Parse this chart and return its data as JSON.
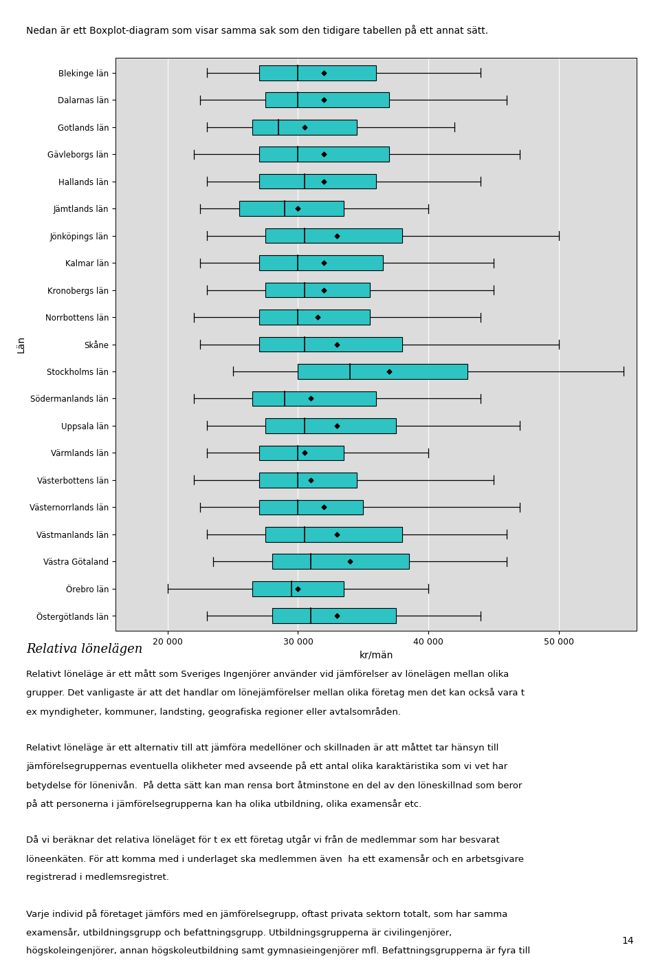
{
  "title_top": "Nedan är ett Boxplot-diagram som visar samma sak som den tidigare tabellen på ett annat sätt.",
  "ylabel": "Län",
  "xlabel": "kr/män",
  "plot_bg": "#dcdcdc",
  "fig_bg": "#ffffff",
  "box_color": "#2ec4c4",
  "box_edge_color": "#000000",
  "whisker_color": "#000000",
  "median_color": "#000000",
  "mean_color": "#000000",
  "xticks": [
    20000,
    30000,
    40000,
    50000
  ],
  "xlabels": [
    "20 000",
    "30 000",
    "40 000",
    "50 000"
  ],
  "xlim": [
    16000,
    56000
  ],
  "categories": [
    "Blekinge län",
    "Dalarnas län",
    "Gotlands län",
    "Gävleborgs län",
    "Hallands län",
    "Jämtlands län",
    "Jönköpings län",
    "Kalmar län",
    "Kronobergs län",
    "Norrbottens län",
    "Skåne",
    "Stockholms län",
    "Södermanlands län",
    "Uppsala län",
    "Värmlands län",
    "Västerbottens län",
    "Västernorrlands län",
    "Västmanlands län",
    "Västra Götaland",
    "Örebro län",
    "Östergötlands län"
  ],
  "boxes": [
    {
      "whislo": 23000,
      "q1": 27000,
      "med": 30000,
      "q3": 36000,
      "whishi": 44000,
      "mean": 32000
    },
    {
      "whislo": 22500,
      "q1": 27500,
      "med": 30000,
      "q3": 37000,
      "whishi": 46000,
      "mean": 32000
    },
    {
      "whislo": 23000,
      "q1": 26500,
      "med": 28500,
      "q3": 34500,
      "whishi": 42000,
      "mean": 30500
    },
    {
      "whislo": 22000,
      "q1": 27000,
      "med": 30000,
      "q3": 37000,
      "whishi": 47000,
      "mean": 32000
    },
    {
      "whislo": 23000,
      "q1": 27000,
      "med": 30500,
      "q3": 36000,
      "whishi": 44000,
      "mean": 32000
    },
    {
      "whislo": 22500,
      "q1": 25500,
      "med": 29000,
      "q3": 33500,
      "whishi": 40000,
      "mean": 30000
    },
    {
      "whislo": 23000,
      "q1": 27500,
      "med": 30500,
      "q3": 38000,
      "whishi": 50000,
      "mean": 33000
    },
    {
      "whislo": 22500,
      "q1": 27000,
      "med": 30000,
      "q3": 36500,
      "whishi": 45000,
      "mean": 32000
    },
    {
      "whislo": 23000,
      "q1": 27500,
      "med": 30500,
      "q3": 35500,
      "whishi": 45000,
      "mean": 32000
    },
    {
      "whislo": 22000,
      "q1": 27000,
      "med": 30000,
      "q3": 35500,
      "whishi": 44000,
      "mean": 31500
    },
    {
      "whislo": 22500,
      "q1": 27000,
      "med": 30500,
      "q3": 38000,
      "whishi": 50000,
      "mean": 33000
    },
    {
      "whislo": 25000,
      "q1": 30000,
      "med": 34000,
      "q3": 43000,
      "whishi": 55000,
      "mean": 37000
    },
    {
      "whislo": 22000,
      "q1": 26500,
      "med": 29000,
      "q3": 36000,
      "whishi": 44000,
      "mean": 31000
    },
    {
      "whislo": 23000,
      "q1": 27500,
      "med": 30500,
      "q3": 37500,
      "whishi": 47000,
      "mean": 33000
    },
    {
      "whislo": 23000,
      "q1": 27000,
      "med": 30000,
      "q3": 33500,
      "whishi": 40000,
      "mean": 30500
    },
    {
      "whislo": 22000,
      "q1": 27000,
      "med": 30000,
      "q3": 34500,
      "whishi": 45000,
      "mean": 31000
    },
    {
      "whislo": 22500,
      "q1": 27000,
      "med": 30000,
      "q3": 35000,
      "whishi": 47000,
      "mean": 32000
    },
    {
      "whislo": 23000,
      "q1": 27500,
      "med": 30500,
      "q3": 38000,
      "whishi": 46000,
      "mean": 33000
    },
    {
      "whislo": 23500,
      "q1": 28000,
      "med": 31000,
      "q3": 38500,
      "whishi": 46000,
      "mean": 34000
    },
    {
      "whislo": 20000,
      "q1": 26500,
      "med": 29500,
      "q3": 33500,
      "whishi": 40000,
      "mean": 30000
    },
    {
      "whislo": 23000,
      "q1": 28000,
      "med": 31000,
      "q3": 37500,
      "whishi": 44000,
      "mean": 33000
    }
  ],
  "section_heading": "Relativa lönelägen",
  "para1": "Relativt löneläge är ett mått som Sveriges Ingenjörer använder vid jämförelser av lönelägen mellan olika grupper. Det vanligaste är att det handlar om lönejämförelser mellan olika företag men det kan också vara t ex myndigheter, kommuner, landsting, geografiska regioner eller avtalsområden.",
  "para2": "Relativt löneläge är ett alternativ till att jämföra medellöner och skillnaden är att måttet tar hänsyn till jämförelsegruppernas eventuella olikheter med avseende på ett antal olika karaktäristika som vi vet har betydelse för lönenivån.  På detta sätt kan man rensa bort åtminstone en del av den löneskillnad som beror på att personerna i jämförelsegrupperna kan ha olika utbildning, olika examensår etc.",
  "para3": "Då vi beräknar det relativa löneläget för t ex ett företag utgår vi från de medlemmar som har besvarat löneenkäten. För att komma med i underlaget ska medlemmen även  ha ett examensår och en arbetsgivare registrerad i medlemsregistret.",
  "para4": "Varje individ på företaget jämförs med en jämförelsegrupp, oftast privata sektorn totalt, som har samma examensår, utbildningsgrupp och befattningsgrupp. Utbildningsgrupperna är civilingenjörer, högskoleingenjörer, annan högskoleutbildning samt gymnasieingenjörer mfl. Befattningsgrupperna är fyra till antalet; chefer och företagsledare, projektledare, specialister samt annan befattning. Hänsyn tas också till om individen har rätt till övertidsersättning eller inte. Detta gör att exempelvis en projektledare som har rätt till övertidsersättning jämförs mot andra projektledare i hela privata sektorn som har samma examensår, motsvarande utbildningsnivå och som har rätt till övertidsersättning.",
  "page_number": "14"
}
